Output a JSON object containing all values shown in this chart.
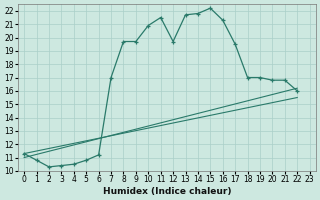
{
  "xlabel": "Humidex (Indice chaleur)",
  "bg_color": "#cde8e0",
  "grid_color": "#aacfc8",
  "line_color": "#2a7a6a",
  "x_ticks": [
    0,
    1,
    2,
    3,
    4,
    5,
    6,
    7,
    8,
    9,
    10,
    11,
    12,
    13,
    14,
    15,
    16,
    17,
    18,
    19,
    20,
    21,
    22,
    23
  ],
  "y_ticks": [
    10,
    11,
    12,
    13,
    14,
    15,
    16,
    17,
    18,
    19,
    20,
    21,
    22
  ],
  "ylim": [
    10,
    22.5
  ],
  "xlim": [
    -0.5,
    23.5
  ],
  "main_x": [
    0,
    1,
    2,
    3,
    4,
    5,
    6,
    7,
    8,
    9,
    10,
    11,
    12,
    13,
    14,
    15,
    16,
    17,
    18,
    19,
    20,
    21,
    22
  ],
  "main_y": [
    11.3,
    10.8,
    10.3,
    10.4,
    10.5,
    10.8,
    11.2,
    17.0,
    19.7,
    19.7,
    20.9,
    21.5,
    19.7,
    21.7,
    21.8,
    22.2,
    21.3,
    19.5,
    17.0,
    17.0,
    16.8,
    16.8,
    16.0
  ],
  "trend1_x": [
    0,
    22
  ],
  "trend1_y": [
    11.0,
    16.2
  ],
  "trend2_x": [
    0,
    22
  ],
  "trend2_y": [
    11.3,
    15.5
  ],
  "xlabel_fontsize": 6.5,
  "tick_fontsize": 5.5
}
